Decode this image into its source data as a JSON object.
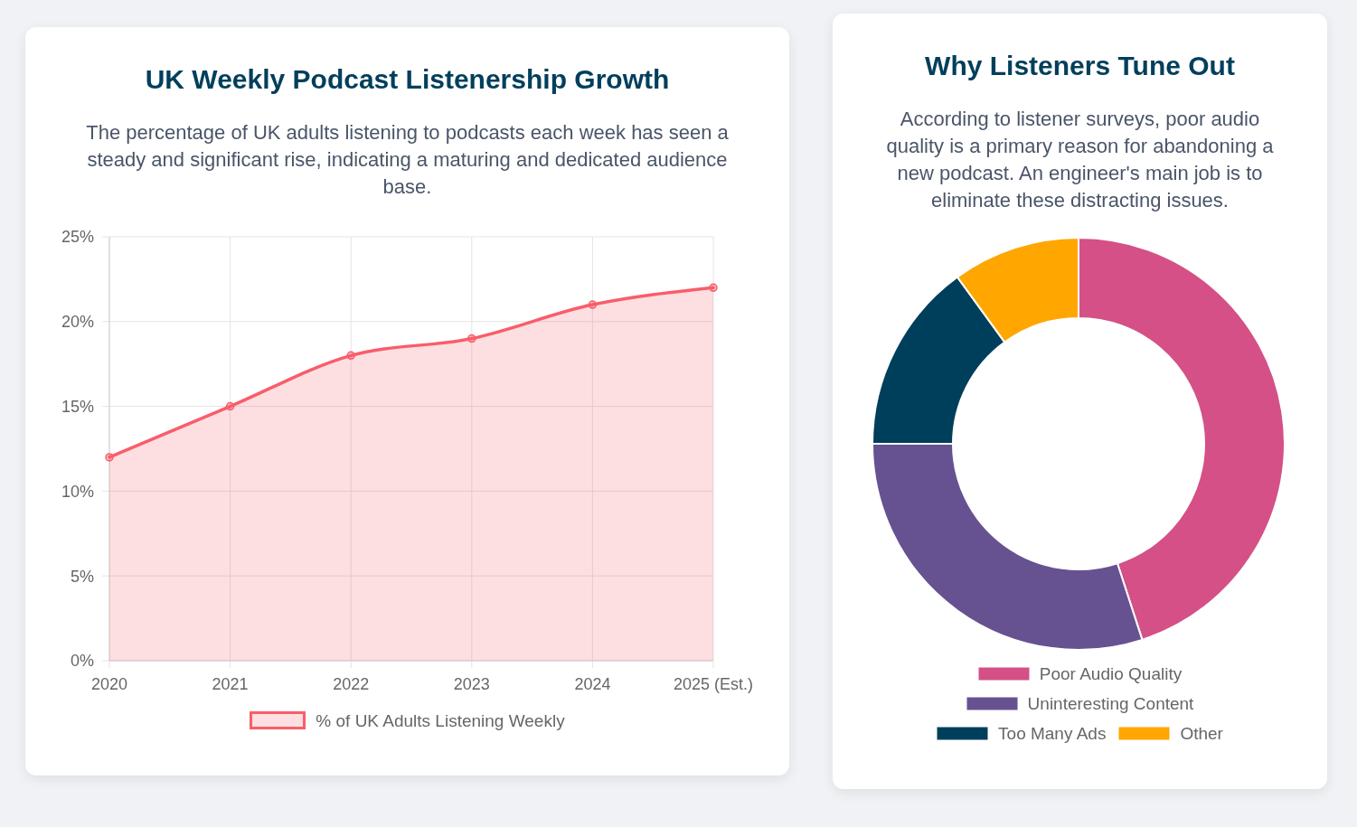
{
  "chart_data": [
    {
      "type": "area",
      "title": "UK Weekly Podcast Listenership Growth",
      "subtitle": "The percentage of UK adults listening to podcasts each week has seen a steady and significant rise, indicating a maturing and dedicated audience base.",
      "categories": [
        "2020",
        "2021",
        "2022",
        "2023",
        "2024",
        "2025 (Est.)"
      ],
      "series": [
        {
          "name": "% of UK Adults Listening Weekly",
          "color": "#f95d6a",
          "values": [
            12,
            15,
            18,
            19,
            21,
            22
          ]
        }
      ],
      "ylim": [
        0,
        25
      ],
      "yticks": [
        {
          "value": 0,
          "label": "0%"
        },
        {
          "value": 5,
          "label": "5%"
        },
        {
          "value": 10,
          "label": "10%"
        },
        {
          "value": 15,
          "label": "15%"
        },
        {
          "value": 20,
          "label": "20%"
        },
        {
          "value": 25,
          "label": "25%"
        }
      ],
      "grid": true,
      "legend": "bottom",
      "marker": "circle"
    },
    {
      "type": "donut",
      "title": "Why Listeners Tune Out",
      "subtitle": "According to listener surveys, poor audio quality is a primary reason for abandoning a new podcast. An engineer's main job is to eliminate these distracting issues.",
      "categories": [
        "Poor Audio Quality",
        "Uninteresting Content",
        "Too Many Ads",
        "Other"
      ],
      "values": [
        45,
        30,
        15,
        10
      ],
      "colors": [
        "#d45087",
        "#665191",
        "#003f5c",
        "#ffa600"
      ],
      "legend": "bottom"
    }
  ]
}
